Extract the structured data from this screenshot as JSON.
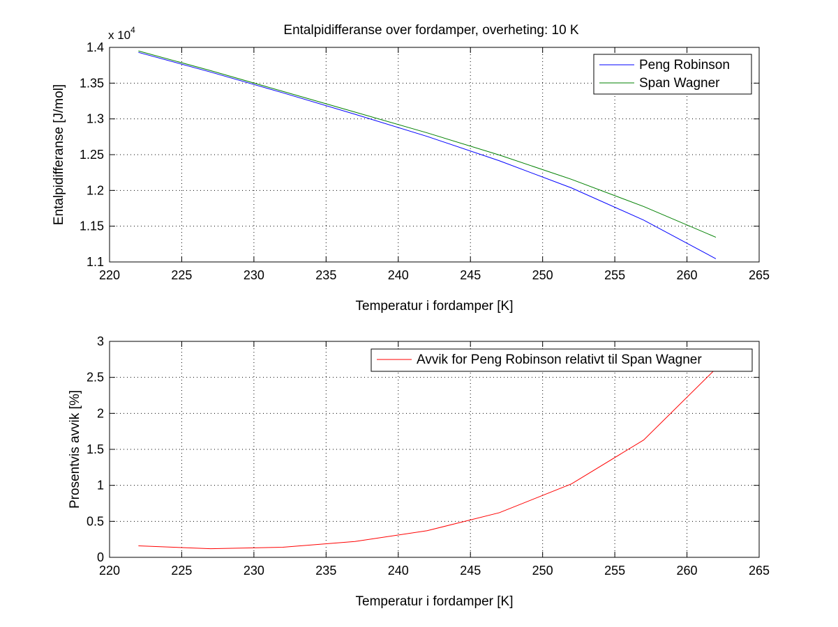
{
  "title": "Entalpidifferanse over fordamper, overheting: 10 K",
  "chart_data": [
    {
      "type": "line",
      "title": "Entalpidifferanse over fordamper, overheting: 10 K",
      "xlabel": "Temperatur i fordamper [K]",
      "ylabel": "Entalpidifferanse [J/mol]",
      "y_exponent": {
        "base": "x 10",
        "power": "4"
      },
      "xlim": [
        220,
        265
      ],
      "ylim": [
        1.1,
        1.4
      ],
      "xticks": [
        "220",
        "225",
        "230",
        "235",
        "240",
        "245",
        "250",
        "255",
        "260",
        "265"
      ],
      "yticks": [
        "1.1",
        "1.15",
        "1.2",
        "1.25",
        "1.3",
        "1.35",
        "1.4"
      ],
      "grid": true,
      "legend_position": "top-right",
      "x": [
        222,
        227,
        232,
        237,
        242,
        247,
        252,
        257,
        262
      ],
      "series": [
        {
          "name": "Peng Robinson",
          "color": "#0000ff",
          "values": [
            1.393,
            1.3655,
            1.3365,
            1.3065,
            1.2755,
            1.2415,
            1.2035,
            1.1585,
            1.1045
          ]
        },
        {
          "name": "Span Wagner",
          "color": "#008000",
          "values": [
            1.395,
            1.3675,
            1.3385,
            1.3095,
            1.2805,
            1.2495,
            1.2155,
            1.1775,
            1.1345
          ]
        }
      ]
    },
    {
      "type": "line",
      "xlabel": "Temperatur i fordamper [K]",
      "ylabel": "Prosentvis avvik [%]",
      "xlim": [
        220,
        265
      ],
      "ylim": [
        0,
        3
      ],
      "xticks": [
        "220",
        "225",
        "230",
        "235",
        "240",
        "245",
        "250",
        "255",
        "260",
        "265"
      ],
      "yticks": [
        "0",
        "0.5",
        "1",
        "1.5",
        "2",
        "2.5",
        "3"
      ],
      "grid": true,
      "legend_position": "top-right",
      "x": [
        222,
        227,
        232,
        237,
        242,
        247,
        252,
        257,
        262
      ],
      "series": [
        {
          "name": "Avvik for Peng Robinson relativt til Span Wagner",
          "color": "#ff0000",
          "values": [
            0.16,
            0.12,
            0.14,
            0.22,
            0.37,
            0.62,
            1.02,
            1.63,
            2.62
          ]
        }
      ]
    }
  ]
}
